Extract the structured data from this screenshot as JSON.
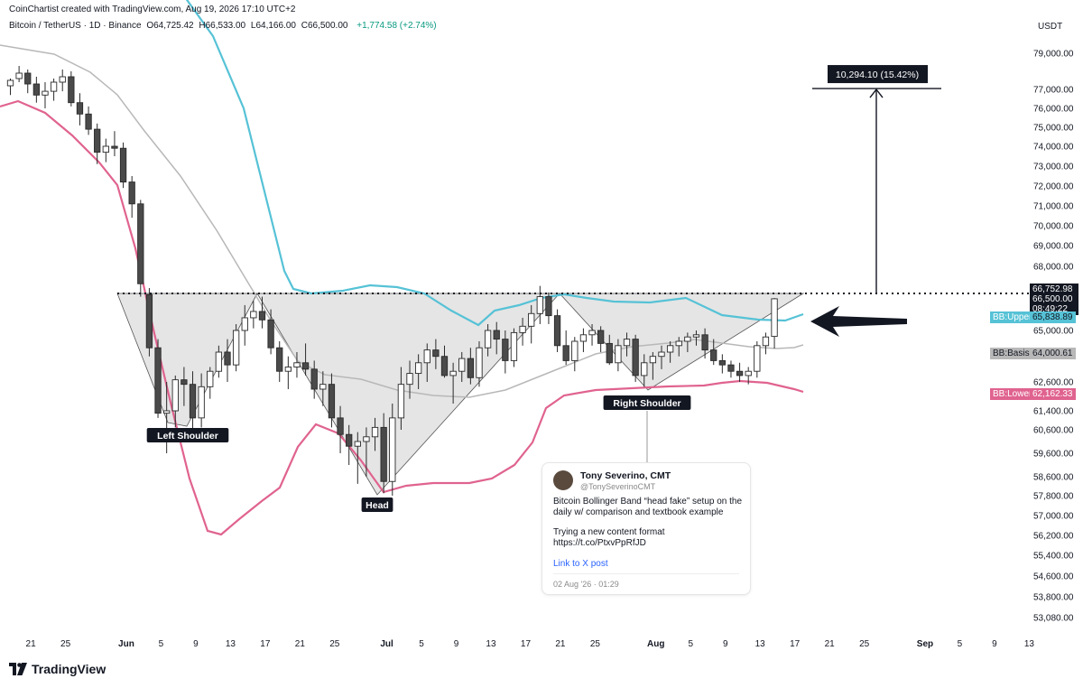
{
  "header": {
    "attribution": "CoinChartist created with TradingView.com, Aug 19, 2026 17:10 UTC+2",
    "symbol": "Bitcoin / TetherUS · 1D · Binance",
    "open": "O64,725.42",
    "high": "H66,533.00",
    "low": "L64,166.00",
    "close": "C66,500.00",
    "change": "+1,774.58 (+2.74%)",
    "currency": "USDT"
  },
  "chart_data": {
    "type": "candlestick",
    "title": "",
    "y_axis": {
      "ticks": [
        {
          "v": 79000,
          "label": "79,000.00"
        },
        {
          "v": 77000,
          "label": "77,000.00"
        },
        {
          "v": 76000,
          "label": "76,000.00"
        },
        {
          "v": 75000,
          "label": "75,000.00"
        },
        {
          "v": 74000,
          "label": "74,000.00"
        },
        {
          "v": 73000,
          "label": "73,000.00"
        },
        {
          "v": 72000,
          "label": "72,000.00"
        },
        {
          "v": 71000,
          "label": "71,000.00"
        },
        {
          "v": 70000,
          "label": "70,000.00"
        },
        {
          "v": 69000,
          "label": "69,000.00"
        },
        {
          "v": 68000,
          "label": "68,000.00"
        },
        {
          "v": 65000,
          "label": "65,000.00"
        },
        {
          "v": 62600,
          "label": "62,600.00"
        },
        {
          "v": 61400,
          "label": "61,400.00"
        },
        {
          "v": 60600,
          "label": "60,600.00"
        },
        {
          "v": 59600,
          "label": "59,600.00"
        },
        {
          "v": 58600,
          "label": "58,600.00"
        },
        {
          "v": 57800,
          "label": "57,800.00"
        },
        {
          "v": 57000,
          "label": "57,000.00"
        },
        {
          "v": 56200,
          "label": "56,200.00"
        },
        {
          "v": 55400,
          "label": "55,400.00"
        },
        {
          "v": 54600,
          "label": "54,600.00"
        },
        {
          "v": 53800,
          "label": "53,800.00"
        },
        {
          "v": 53080,
          "label": "53,080.00"
        }
      ]
    },
    "x_axis": {
      "ticks": [
        {
          "i": 1,
          "label": "21"
        },
        {
          "i": 5,
          "label": "25"
        },
        {
          "i": 12,
          "label": "Jun"
        },
        {
          "i": 16,
          "label": "5"
        },
        {
          "i": 20,
          "label": "9"
        },
        {
          "i": 24,
          "label": "13"
        },
        {
          "i": 28,
          "label": "17"
        },
        {
          "i": 32,
          "label": "21"
        },
        {
          "i": 36,
          "label": "25"
        },
        {
          "i": 42,
          "label": "Jul"
        },
        {
          "i": 46,
          "label": "5"
        },
        {
          "i": 50,
          "label": "9"
        },
        {
          "i": 54,
          "label": "13"
        },
        {
          "i": 58,
          "label": "17"
        },
        {
          "i": 62,
          "label": "21"
        },
        {
          "i": 66,
          "label": "25"
        },
        {
          "i": 73,
          "label": "Aug"
        },
        {
          "i": 77,
          "label": "5"
        },
        {
          "i": 81,
          "label": "9"
        },
        {
          "i": 85,
          "label": "13"
        },
        {
          "i": 89,
          "label": "17"
        },
        {
          "i": 93,
          "label": "21"
        },
        {
          "i": 97,
          "label": "25"
        },
        {
          "i": 104,
          "label": "Sep"
        },
        {
          "i": 108,
          "label": "5"
        },
        {
          "i": 112,
          "label": "9"
        },
        {
          "i": 116,
          "label": "13"
        }
      ]
    },
    "candles": [
      [
        77200,
        77600,
        76700,
        77500
      ],
      [
        77600,
        78300,
        77400,
        77900
      ],
      [
        77900,
        78100,
        76800,
        77300
      ],
      [
        77300,
        77700,
        76300,
        76700
      ],
      [
        76700,
        77400,
        76000,
        76900
      ],
      [
        76900,
        77600,
        76400,
        77400
      ],
      [
        77400,
        78100,
        76900,
        77700
      ],
      [
        77700,
        78000,
        76100,
        76300
      ],
      [
        76300,
        76800,
        75100,
        75700
      ],
      [
        75700,
        76100,
        74600,
        74900
      ],
      [
        74900,
        75200,
        73100,
        73700
      ],
      [
        73700,
        74400,
        73200,
        74000
      ],
      [
        74000,
        74800,
        73500,
        73900
      ],
      [
        73900,
        74200,
        71900,
        72200
      ],
      [
        72200,
        72500,
        70400,
        71100
      ],
      [
        71100,
        71300,
        66600,
        67200
      ],
      [
        66700,
        67000,
        63800,
        64200
      ],
      [
        64200,
        64600,
        61100,
        61300
      ],
      [
        61300,
        62600,
        59600,
        61400
      ],
      [
        61400,
        62900,
        60700,
        62700
      ],
      [
        62700,
        63300,
        61600,
        62500
      ],
      [
        62500,
        63100,
        60600,
        61100
      ],
      [
        61100,
        63000,
        60700,
        62400
      ],
      [
        62400,
        63300,
        61900,
        63100
      ],
      [
        63100,
        64300,
        62800,
        64000
      ],
      [
        64000,
        64600,
        62600,
        63400
      ],
      [
        63400,
        65300,
        63100,
        65000
      ],
      [
        65000,
        66200,
        64300,
        65600
      ],
      [
        65600,
        66400,
        65100,
        65900
      ],
      [
        65900,
        66600,
        65100,
        65500
      ],
      [
        65500,
        66000,
        63900,
        64200
      ],
      [
        64200,
        64500,
        62600,
        63100
      ],
      [
        63100,
        63800,
        62300,
        63300
      ],
      [
        63300,
        64000,
        62800,
        63500
      ],
      [
        63500,
        64400,
        62900,
        63200
      ],
      [
        63200,
        63600,
        61900,
        62300
      ],
      [
        62300,
        63100,
        61600,
        62500
      ],
      [
        62500,
        63000,
        60700,
        61100
      ],
      [
        61100,
        61600,
        59600,
        60400
      ],
      [
        60400,
        60800,
        59100,
        59900
      ],
      [
        59900,
        60500,
        58300,
        60100
      ],
      [
        60100,
        60700,
        58600,
        60300
      ],
      [
        60300,
        61100,
        59700,
        60700
      ],
      [
        60700,
        61300,
        57900,
        58400
      ],
      [
        58400,
        61700,
        57800,
        61100
      ],
      [
        61100,
        63300,
        60600,
        62500
      ],
      [
        62500,
        63600,
        61900,
        63000
      ],
      [
        63000,
        63900,
        62300,
        63500
      ],
      [
        63500,
        64400,
        62600,
        64100
      ],
      [
        64100,
        64600,
        63200,
        63800
      ],
      [
        63800,
        64300,
        62800,
        62900
      ],
      [
        62900,
        63500,
        61700,
        63100
      ],
      [
        63100,
        64000,
        62600,
        63700
      ],
      [
        63700,
        64200,
        62500,
        62800
      ],
      [
        62800,
        64500,
        62400,
        64200
      ],
      [
        64200,
        65300,
        63800,
        65000
      ],
      [
        65000,
        65400,
        63900,
        64600
      ],
      [
        64600,
        65000,
        63000,
        63600
      ],
      [
        63600,
        65100,
        63300,
        64900
      ],
      [
        64900,
        65600,
        64300,
        65200
      ],
      [
        65200,
        66200,
        64400,
        65800
      ],
      [
        65800,
        67100,
        65300,
        66600
      ],
      [
        66600,
        66800,
        65300,
        65700
      ],
      [
        65700,
        66000,
        64000,
        64300
      ],
      [
        64300,
        65000,
        63400,
        63600
      ],
      [
        63600,
        64700,
        63100,
        64500
      ],
      [
        64500,
        65100,
        64000,
        64800
      ],
      [
        64800,
        65300,
        64300,
        65000
      ],
      [
        65000,
        65200,
        64000,
        64400
      ],
      [
        64400,
        64800,
        63400,
        63500
      ],
      [
        63500,
        64600,
        63100,
        64300
      ],
      [
        64300,
        64900,
        63800,
        64600
      ],
      [
        64600,
        64800,
        62600,
        62900
      ],
      [
        62900,
        63900,
        62400,
        63500
      ],
      [
        63500,
        64000,
        62700,
        63800
      ],
      [
        63800,
        64300,
        63200,
        64000
      ],
      [
        64000,
        64500,
        63500,
        64300
      ],
      [
        64300,
        64700,
        63800,
        64500
      ],
      [
        64500,
        64900,
        64000,
        64700
      ],
      [
        64700,
        65000,
        64300,
        64800
      ],
      [
        64800,
        65100,
        63700,
        64100
      ],
      [
        64100,
        64600,
        63400,
        63600
      ],
      [
        63600,
        63900,
        63000,
        63400
      ],
      [
        63400,
        63600,
        62800,
        63100
      ],
      [
        63100,
        63500,
        62600,
        62900
      ],
      [
        62900,
        63300,
        62500,
        63100
      ],
      [
        63100,
        64500,
        62800,
        64300
      ],
      [
        64300,
        64900,
        63900,
        64700
      ],
      [
        64725.42,
        66533,
        64166,
        66500
      ]
    ],
    "indicators": [
      {
        "name": "BB:Upper",
        "value": "65,838.89",
        "color": "#56c2d6"
      },
      {
        "name": "BB:Basis",
        "value": "64,000.61",
        "color": "#b8b8b8"
      },
      {
        "name": "BB:Lower",
        "value": "62,162.33",
        "color": "#e0638f"
      }
    ],
    "price_tags": [
      "66,752.98",
      "66,500.00",
      "08:49:22"
    ],
    "neckline": 66752.98,
    "pattern_labels": {
      "left_shoulder": "Left Shoulder",
      "head": "Head",
      "right_shoulder": "Right Shoulder"
    },
    "measure_label": "10,294.10 (15.42%)",
    "measure_target": 77047
  },
  "tweet": {
    "name": "Tony Severino, CMT",
    "handle": "@TonySeverinoCMT",
    "text1": "Bitcoin Bollinger Band “head fake” setup on the daily w/ comparison and textbook example",
    "text2": "Trying a new content format https://t.co/PtxvPpRfJD",
    "link": "Link to X post",
    "date": "02 Aug '26 · 01:29"
  },
  "footer": {
    "brand": "TradingView"
  },
  "colors": {
    "up": "#ffffff",
    "down": "#4a4a4a",
    "bb_upper": "#56c2d6",
    "bb_basis": "#b8b8b8",
    "bb_lower": "#e0638f"
  }
}
